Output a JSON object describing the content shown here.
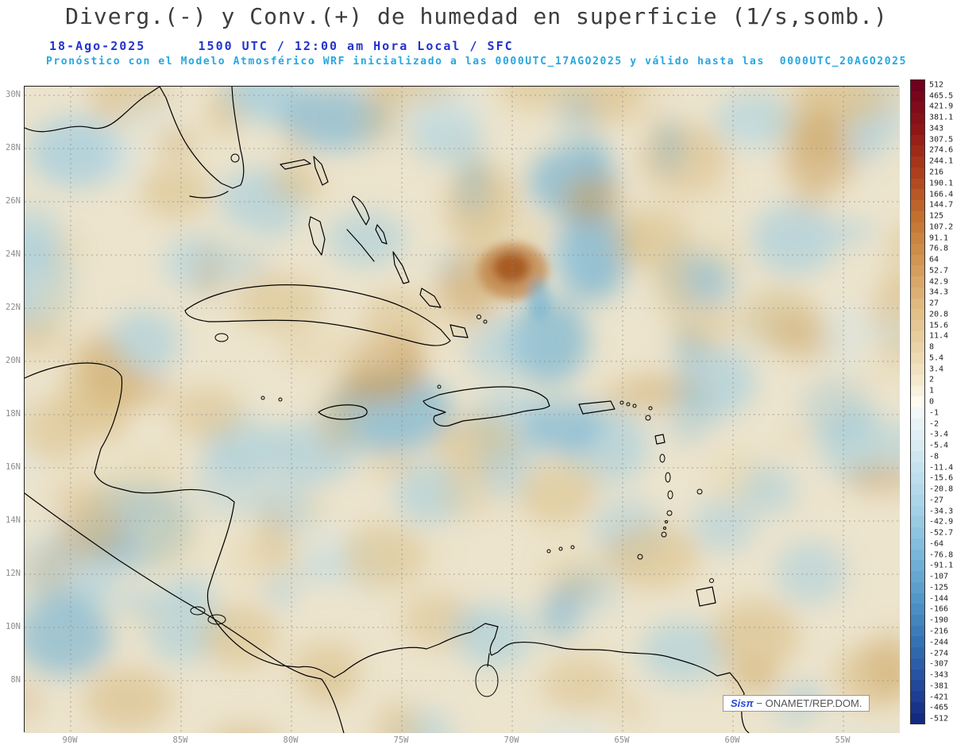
{
  "header": {
    "title": "Diverg.(-) y Conv.(+) de humedad en superficie (1/s,somb.)",
    "datetime_text": "18-Ago-2025      1500 UTC / 12:00 am Hora Local / SFC",
    "forecast_text": "Pronóstico con el Modelo Atmosférico WRF inicializado a las 0000UTC_17AGO2025 y válido hasta las  0000UTC_20AGO2025"
  },
  "map": {
    "lat_ticks": [
      "30N",
      "28N",
      "26N",
      "24N",
      "22N",
      "20N",
      "18N",
      "16N",
      "14N",
      "12N",
      "10N",
      "8N"
    ],
    "lon_ticks": [
      "90W",
      "85W",
      "80W",
      "75W",
      "70W",
      "65W",
      "60W",
      "55W"
    ],
    "watermark": {
      "brand": "Sisπ",
      "rest": "− ONAMET/REP.DOM."
    }
  },
  "colorbar": {
    "ticks": [
      "512",
      "465.5",
      "421.9",
      "381.1",
      "343",
      "307.5",
      "274.6",
      "244.1",
      "216",
      "190.1",
      "166.4",
      "144.7",
      "125",
      "107.2",
      "91.1",
      "76.8",
      "64",
      "52.7",
      "42.9",
      "34.3",
      "27",
      "20.8",
      "15.6",
      "11.4",
      "8",
      "5.4",
      "3.4",
      "2",
      "1",
      "0",
      "-1",
      "-2",
      "-3.4",
      "-5.4",
      "-8",
      "-11.4",
      "-15.6",
      "-20.8",
      "-27",
      "-34.3",
      "-42.9",
      "-52.7",
      "-64",
      "-76.8",
      "-91.1",
      "-107",
      "-125",
      "-144",
      "-166",
      "-190",
      "-216",
      "-244",
      "-274",
      "-307",
      "-343",
      "-381",
      "-421",
      "-465",
      "-512"
    ],
    "palette_anchors": [
      {
        "i": 0,
        "c": "#70001d"
      },
      {
        "i": 4,
        "c": "#8f1616"
      },
      {
        "i": 8,
        "c": "#ad3f1c"
      },
      {
        "i": 12,
        "c": "#c3702e"
      },
      {
        "i": 16,
        "c": "#d29552"
      },
      {
        "i": 20,
        "c": "#dfb97f"
      },
      {
        "i": 24,
        "c": "#ead3a8"
      },
      {
        "i": 27,
        "c": "#f4e8cd"
      },
      {
        "i": 29,
        "c": "#fdfaf0"
      },
      {
        "i": 30,
        "c": "#f2f7f7"
      },
      {
        "i": 32,
        "c": "#e0eff3"
      },
      {
        "i": 35,
        "c": "#c6e2ee"
      },
      {
        "i": 39,
        "c": "#a3d0e6"
      },
      {
        "i": 43,
        "c": "#79b7da"
      },
      {
        "i": 47,
        "c": "#5297c8"
      },
      {
        "i": 51,
        "c": "#3572b4"
      },
      {
        "i": 55,
        "c": "#22489c"
      },
      {
        "i": 58,
        "c": "#132a80"
      }
    ]
  },
  "field_colors": {
    "base": "#ece4cd",
    "tan_light": "#e6d6ac",
    "tan_mid": "#d9bd84",
    "tan_deep": "#c89c58",
    "storm_ring": "#bf8040",
    "storm_core": "#a65a20",
    "blue_light": "#cfe5ee",
    "blue_mid": "#9fccdf",
    "blue_deep": "#6fb0d2",
    "blue_strong": "#4f9ac6"
  }
}
